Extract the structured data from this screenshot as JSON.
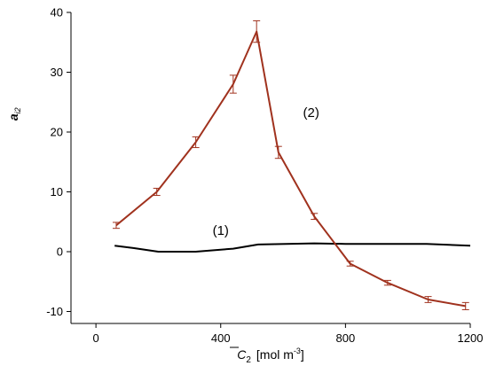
{
  "chart_data": {
    "type": "line",
    "title": "",
    "xlabel_symbol": "C",
    "xlabel_subscript": "2",
    "xlabel_units": "[mol m",
    "xlabel_units_sup": "-3",
    "xlabel_units_close": "]",
    "ylabel_symbol": "a",
    "ylabel_subscript": "i2",
    "xlim": [
      -80,
      1200
    ],
    "ylim": [
      -12,
      40
    ],
    "xticks": [
      0,
      400,
      800,
      1200
    ],
    "yticks": [
      -10,
      0,
      10,
      20,
      30,
      40
    ],
    "grid": false,
    "series": [
      {
        "name": "(1)",
        "color": "#000000",
        "error_bars": false,
        "x": [
          60,
          120,
          200,
          320,
          440,
          520,
          700,
          800,
          950,
          1060,
          1200
        ],
        "y": [
          1.0,
          0.6,
          0.0,
          0.0,
          0.5,
          1.2,
          1.4,
          1.3,
          1.3,
          1.3,
          1.0
        ]
      },
      {
        "name": "(2)",
        "color": "#a0321e",
        "error_bars": true,
        "x": [
          65,
          195,
          320,
          440,
          515,
          585,
          700,
          815,
          935,
          1065,
          1185
        ],
        "y": [
          4.4,
          10.0,
          18.3,
          28.0,
          36.8,
          16.6,
          5.9,
          -2.0,
          -5.2,
          -8.0,
          -9.1
        ],
        "err": [
          0.5,
          0.6,
          0.9,
          1.5,
          1.8,
          1.0,
          0.5,
          0.4,
          0.4,
          0.5,
          0.6
        ]
      }
    ],
    "annotations": [
      {
        "text": "(1)",
        "x": 400,
        "y": 2.8
      },
      {
        "text": "(2)",
        "x": 690,
        "y": 22.5
      }
    ]
  }
}
